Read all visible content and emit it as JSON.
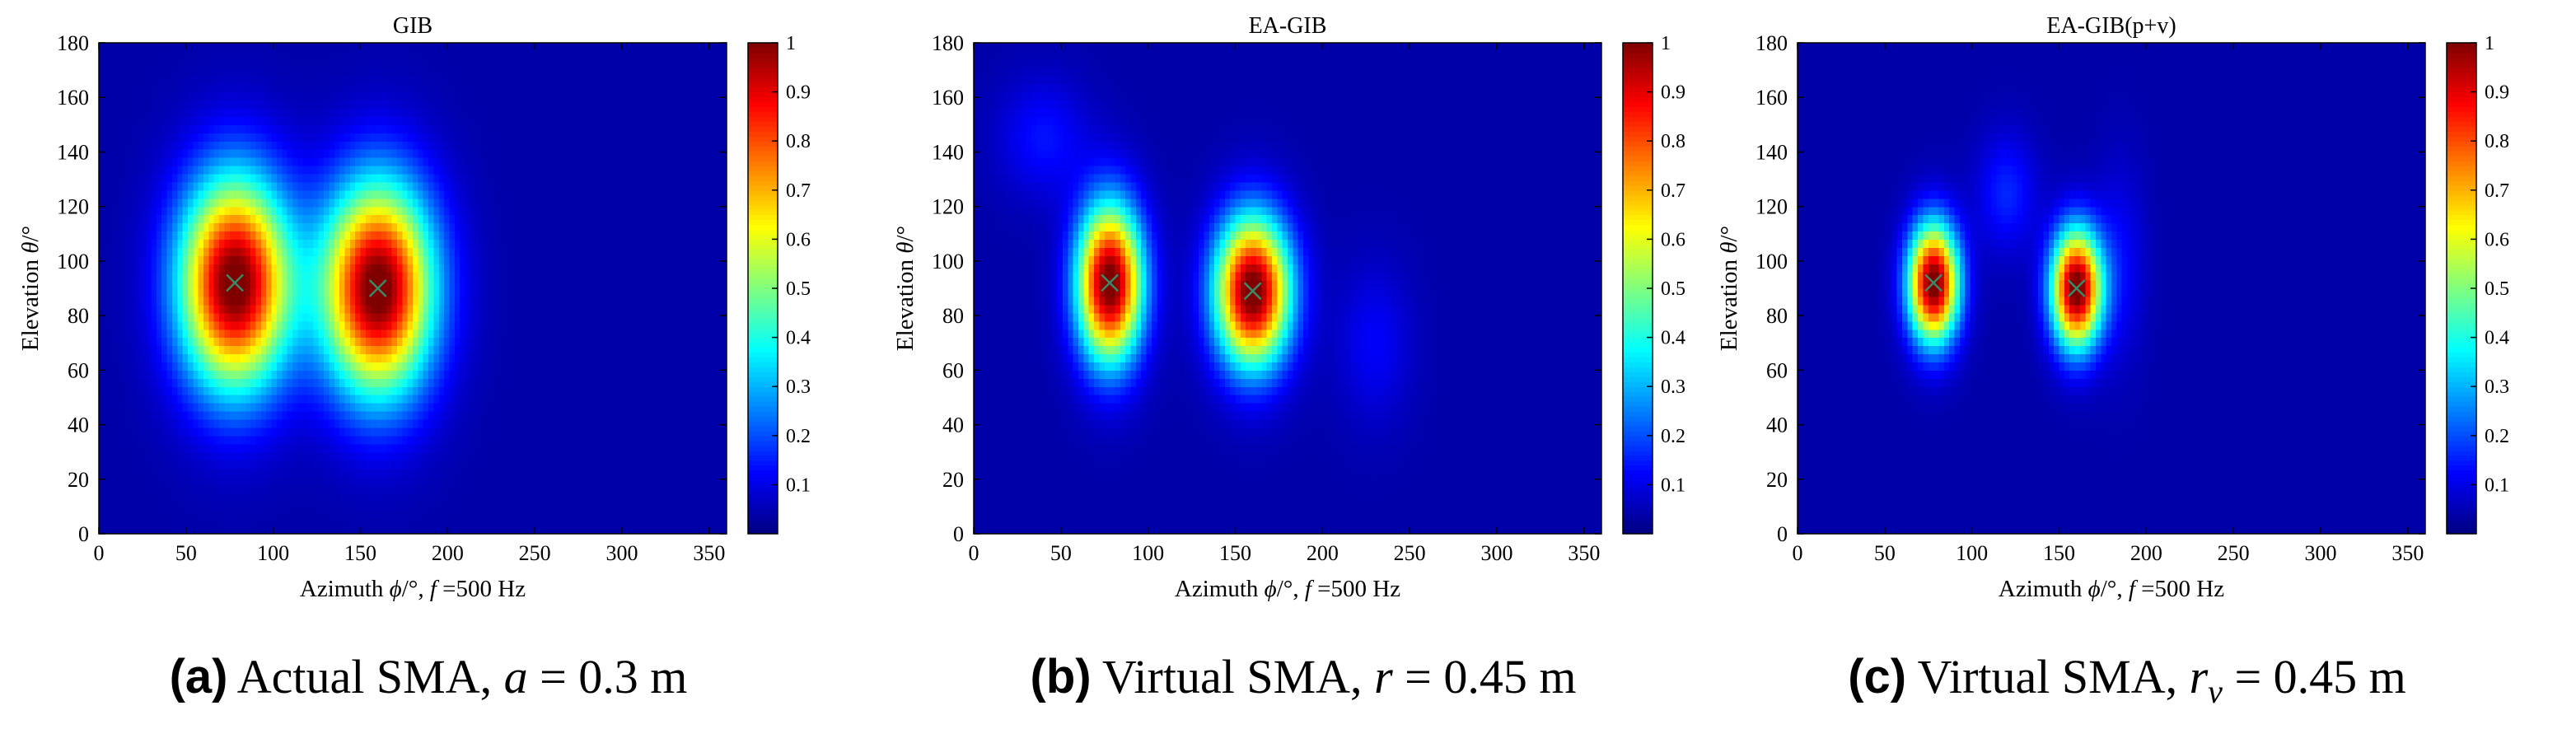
{
  "chart_data": [
    {
      "type": "heatmap",
      "title": "GIB",
      "xlabel": "Azimuth ϕ/°, f =500 Hz",
      "ylabel": "Elevation θ/°",
      "xlim": [
        0,
        360
      ],
      "ylim": [
        0,
        180
      ],
      "xticks": [
        "0",
        "50",
        "100",
        "150",
        "200",
        "250",
        "300",
        "350"
      ],
      "yticks": [
        "0",
        "20",
        "40",
        "60",
        "80",
        "100",
        "120",
        "140",
        "160",
        "180"
      ],
      "colorbar": {
        "range": [
          0,
          1
        ],
        "ticks": [
          "0.1",
          "0.2",
          "0.3",
          "0.4",
          "0.5",
          "0.6",
          "0.7",
          "0.8",
          "0.9",
          "1"
        ]
      },
      "peaks": [
        {
          "azimuth": 78,
          "elevation": 92,
          "value": 1.0,
          "width_az": 22,
          "width_el": 27
        },
        {
          "azimuth": 160,
          "elevation": 90,
          "value": 1.0,
          "width_az": 22,
          "width_el": 27
        }
      ],
      "markers": [
        {
          "azimuth": 78,
          "elevation": 92
        },
        {
          "azimuth": 160,
          "elevation": 90
        }
      ],
      "caption": {
        "label": "(a)",
        "text": "Actual SMA,",
        "var": "a",
        "sub": "",
        "rest": "= 0.3 m"
      }
    },
    {
      "type": "heatmap",
      "title": "EA-GIB",
      "xlabel": "Azimuth ϕ/°, f =500 Hz",
      "ylabel": "Elevation θ/°",
      "xlim": [
        0,
        360
      ],
      "ylim": [
        0,
        180
      ],
      "xticks": [
        "0",
        "50",
        "100",
        "150",
        "200",
        "250",
        "300",
        "350"
      ],
      "yticks": [
        "0",
        "20",
        "40",
        "60",
        "80",
        "100",
        "120",
        "140",
        "160",
        "180"
      ],
      "colorbar": {
        "range": [
          0,
          1
        ],
        "ticks": [
          "0.1",
          "0.2",
          "0.3",
          "0.4",
          "0.5",
          "0.6",
          "0.7",
          "0.8",
          "0.9",
          "1"
        ]
      },
      "peaks": [
        {
          "azimuth": 78,
          "elevation": 92,
          "value": 1.0,
          "width_az": 13,
          "width_el": 20
        },
        {
          "azimuth": 160,
          "elevation": 89,
          "value": 1.0,
          "width_az": 15,
          "width_el": 19
        },
        {
          "azimuth": 40,
          "elevation": 145,
          "value": 0.1,
          "width_az": 18,
          "width_el": 15
        },
        {
          "azimuth": 230,
          "elevation": 70,
          "value": 0.08,
          "width_az": 15,
          "width_el": 20
        }
      ],
      "markers": [
        {
          "azimuth": 78,
          "elevation": 92
        },
        {
          "azimuth": 160,
          "elevation": 89
        }
      ],
      "caption": {
        "label": "(b)",
        "text": "Virtual SMA,",
        "var": "r",
        "sub": "",
        "rest": "= 0.45 m"
      }
    },
    {
      "type": "heatmap",
      "title": "EA-GIB(p+v)",
      "xlabel": "Azimuth ϕ/°, f =500 Hz",
      "ylabel": "Elevation θ/°",
      "xlim": [
        0,
        360
      ],
      "ylim": [
        0,
        180
      ],
      "xticks": [
        "0",
        "50",
        "100",
        "150",
        "200",
        "250",
        "300",
        "350"
      ],
      "yticks": [
        "0",
        "20",
        "40",
        "60",
        "80",
        "100",
        "120",
        "140",
        "160",
        "180"
      ],
      "colorbar": {
        "range": [
          0,
          1
        ],
        "ticks": [
          "0.1",
          "0.2",
          "0.3",
          "0.4",
          "0.5",
          "0.6",
          "0.7",
          "0.8",
          "0.9",
          "1"
        ]
      },
      "peaks": [
        {
          "azimuth": 78,
          "elevation": 92,
          "value": 1.0,
          "width_az": 10,
          "width_el": 15
        },
        {
          "azimuth": 160,
          "elevation": 90,
          "value": 1.0,
          "width_az": 10,
          "width_el": 15
        },
        {
          "azimuth": 120,
          "elevation": 125,
          "value": 0.12,
          "width_az": 12,
          "width_el": 15
        },
        {
          "azimuth": 185,
          "elevation": 100,
          "value": 0.08,
          "width_az": 10,
          "width_el": 25
        }
      ],
      "markers": [
        {
          "azimuth": 78,
          "elevation": 92
        },
        {
          "azimuth": 160,
          "elevation": 90
        }
      ],
      "caption": {
        "label": "(c)",
        "text": "Virtual SMA,",
        "var": "r",
        "sub": "v",
        "rest": "= 0.45 m"
      }
    }
  ]
}
